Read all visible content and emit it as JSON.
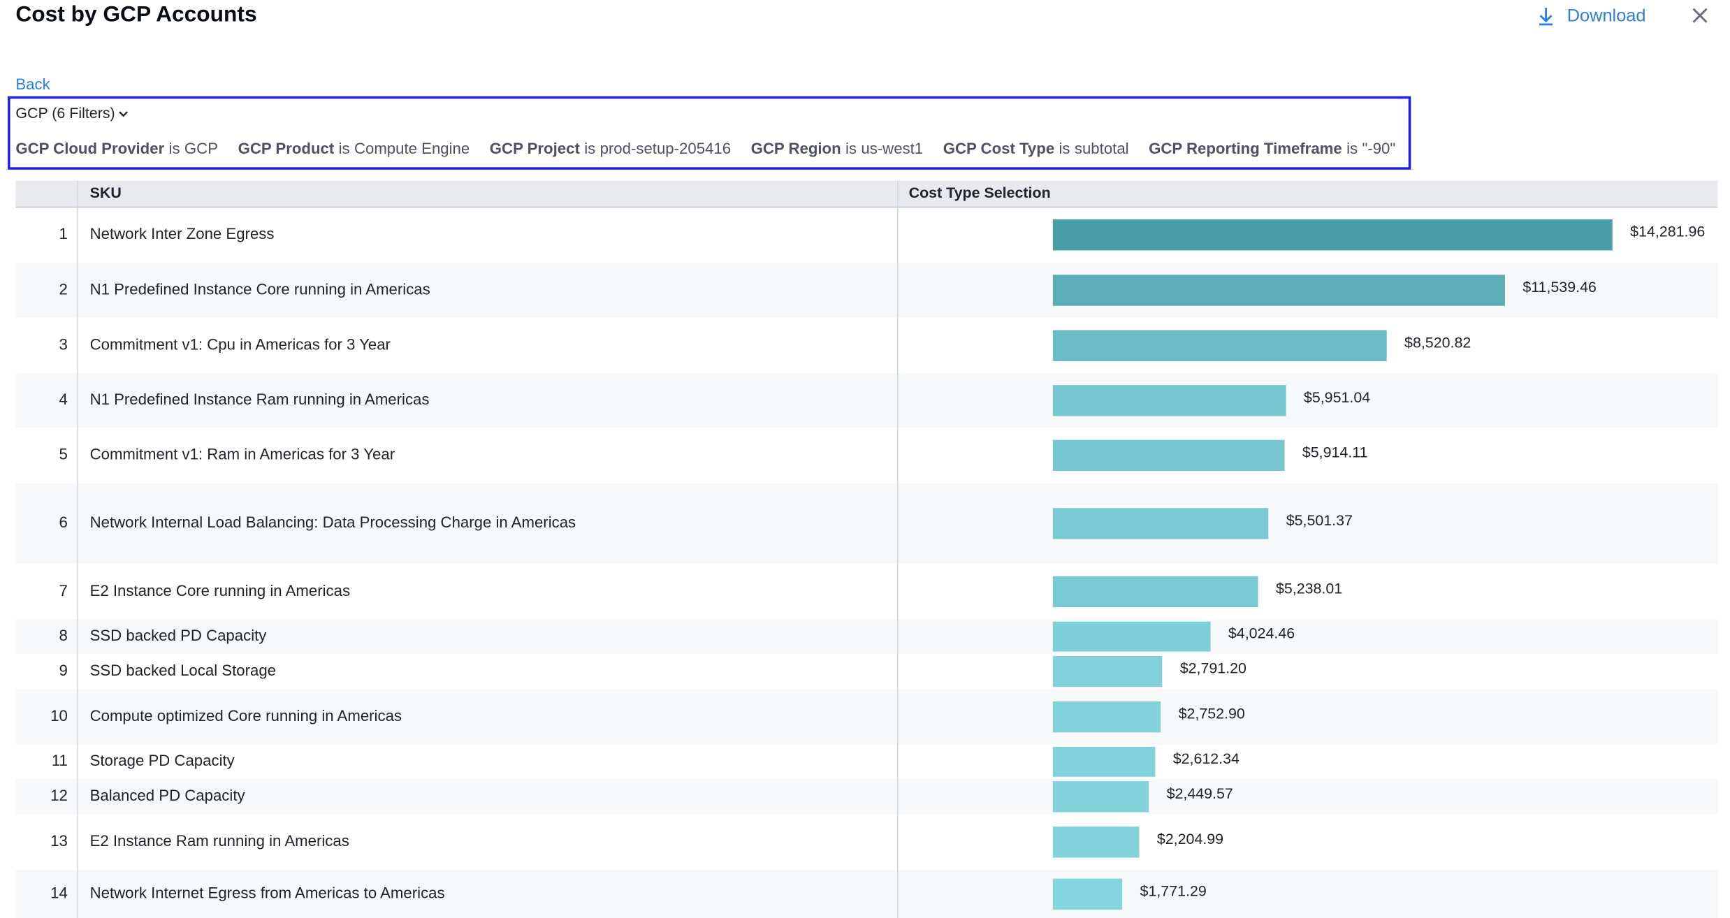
{
  "header": {
    "title": "Cost by GCP Accounts",
    "download": "Download",
    "back": "Back"
  },
  "filters": {
    "summary": "GCP (6 Filters)",
    "items": [
      {
        "field": "GCP Cloud Provider",
        "op": "is",
        "value": "GCP"
      },
      {
        "field": "GCP Product",
        "op": "is",
        "value": "Compute Engine"
      },
      {
        "field": "GCP Project",
        "op": "is",
        "value": "prod-setup-205416"
      },
      {
        "field": "GCP Region",
        "op": "is",
        "value": "us-west1"
      },
      {
        "field": "GCP Cost Type",
        "op": "is",
        "value": "subtotal"
      },
      {
        "field": "GCP Reporting Timeframe",
        "op": "is",
        "value": "\"-90\""
      }
    ]
  },
  "table": {
    "columns": [
      "SKU",
      "Cost Type Selection"
    ],
    "rows": [
      {
        "rank": 1,
        "sku": "Network Inter Zone Egress",
        "cost": 14281.96,
        "cost_label": "$14,281.96"
      },
      {
        "rank": 2,
        "sku": "N1 Predefined Instance Core running in Americas",
        "cost": 11539.46,
        "cost_label": "$11,539.46"
      },
      {
        "rank": 3,
        "sku": "Commitment v1: Cpu in Americas for 3 Year",
        "cost": 8520.82,
        "cost_label": "$8,520.82"
      },
      {
        "rank": 4,
        "sku": "N1 Predefined Instance Ram running in Americas",
        "cost": 5951.04,
        "cost_label": "$5,951.04"
      },
      {
        "rank": 5,
        "sku": "Commitment v1: Ram in Americas for 3 Year",
        "cost": 5914.11,
        "cost_label": "$5,914.11"
      },
      {
        "rank": 6,
        "sku": "Network Internal Load Balancing: Data Processing Charge in Americas",
        "cost": 5501.37,
        "cost_label": "$5,501.37"
      },
      {
        "rank": 7,
        "sku": "E2 Instance Core running in Americas",
        "cost": 5238.01,
        "cost_label": "$5,238.01"
      },
      {
        "rank": 8,
        "sku": "SSD backed PD Capacity",
        "cost": 4024.46,
        "cost_label": "$4,024.46"
      },
      {
        "rank": 9,
        "sku": "SSD backed Local Storage",
        "cost": 2791.2,
        "cost_label": "$2,791.20"
      },
      {
        "rank": 10,
        "sku": "Compute optimized Core running in Americas",
        "cost": 2752.9,
        "cost_label": "$2,752.90"
      },
      {
        "rank": 11,
        "sku": "Storage PD Capacity",
        "cost": 2612.34,
        "cost_label": "$2,612.34"
      },
      {
        "rank": 12,
        "sku": "Balanced PD Capacity",
        "cost": 2449.57,
        "cost_label": "$2,449.57"
      },
      {
        "rank": 13,
        "sku": "E2 Instance Ram running in Americas",
        "cost": 2204.99,
        "cost_label": "$2,204.99"
      },
      {
        "rank": 14,
        "sku": "Network Internet Egress from Americas to Americas",
        "cost": 1771.29,
        "cost_label": "$1,771.29"
      }
    ]
  }
}
